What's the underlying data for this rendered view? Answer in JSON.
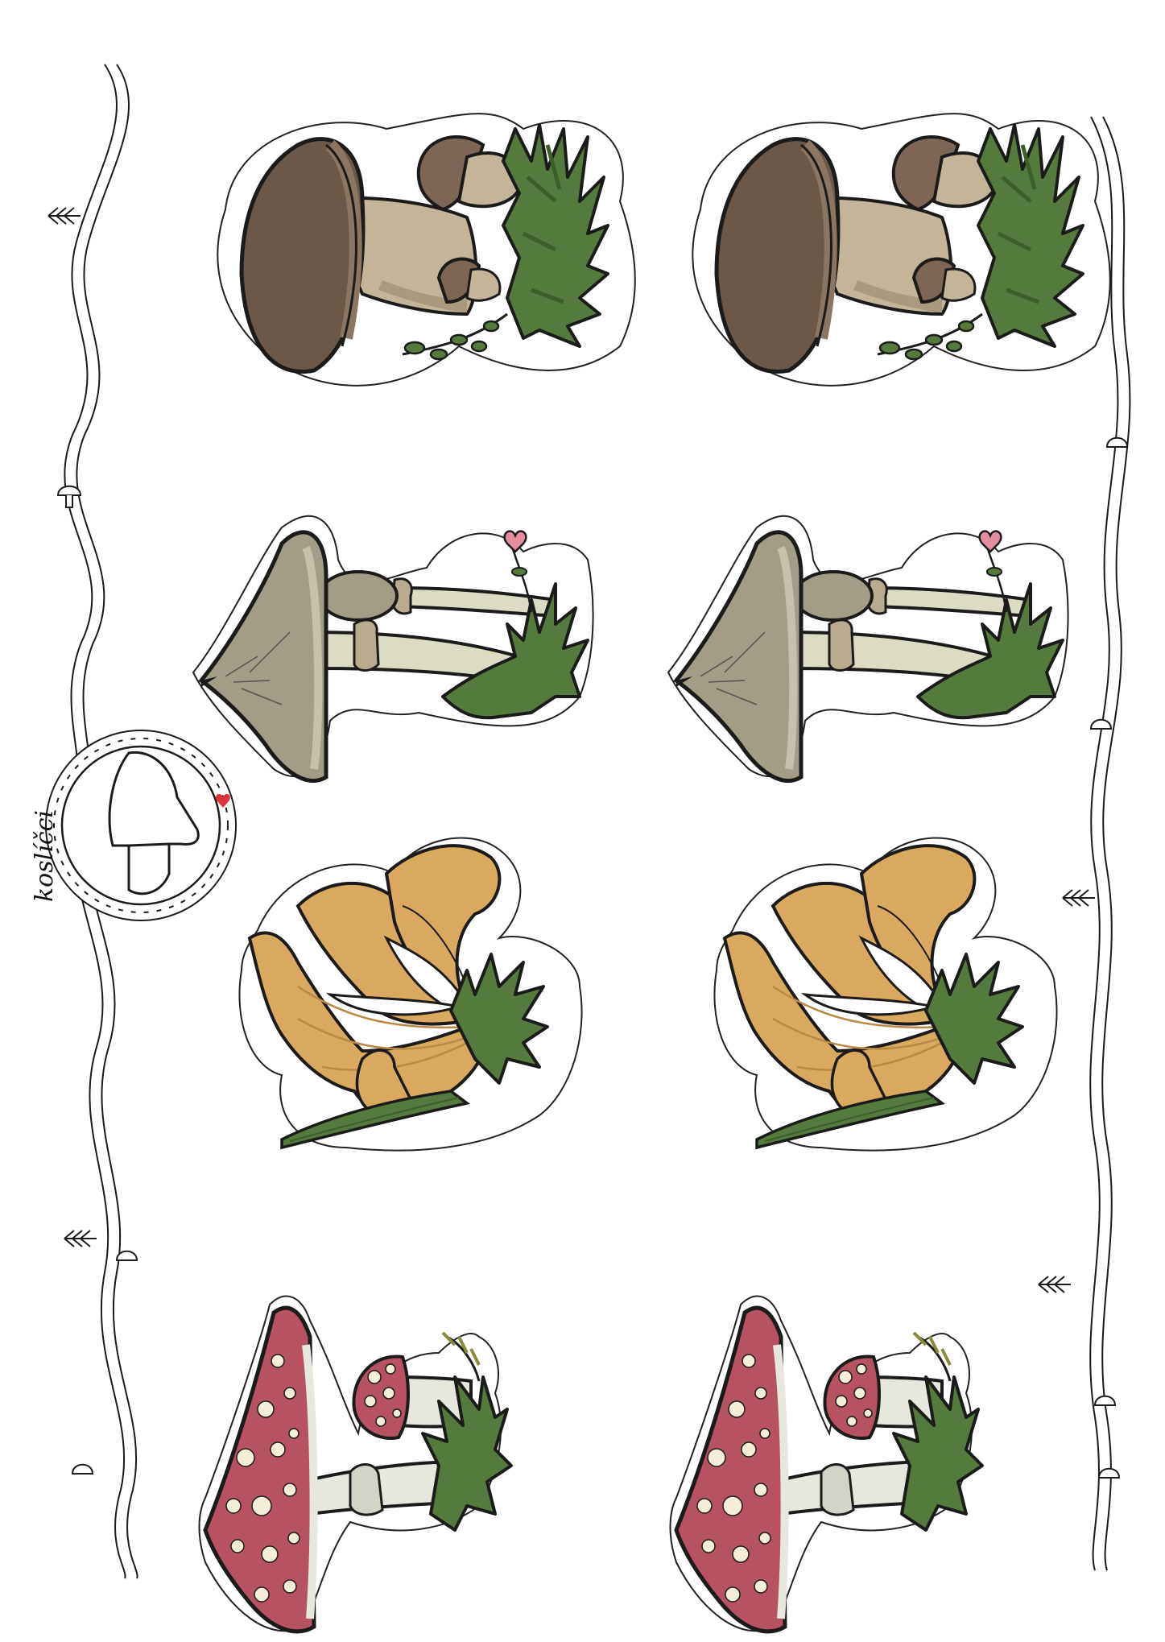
{
  "logo": {
    "text": "koslíčci"
  },
  "colors": {
    "outline": "#1b1b1b",
    "porcini_cap": "#6b5848",
    "porcini_cap_light": "#8b7563",
    "porcini_stem": "#c4b59a",
    "porcini_stem_shade": "#a99a7e",
    "parasol_cap": "#a39d87",
    "parasol_stem": "#dbdcc3",
    "chanterelle": "#d9a95f",
    "chanterelle_dark": "#b98a45",
    "amanita_cap": "#b65262",
    "amanita_spots": "#f4eed8",
    "amanita_stem": "#e7e8dd",
    "grass": "#557a3d",
    "grass_dark": "#3d5e2a",
    "heart": "#e38e9f",
    "logo_heart": "#e0333c"
  },
  "stickers": [
    {
      "kind": "porcini",
      "label": "porcini-sticker"
    },
    {
      "kind": "parasol",
      "label": "parasol-sticker"
    },
    {
      "kind": "chanterelle",
      "label": "chanterelle-sticker"
    },
    {
      "kind": "amanita",
      "label": "amanita-sticker"
    }
  ]
}
